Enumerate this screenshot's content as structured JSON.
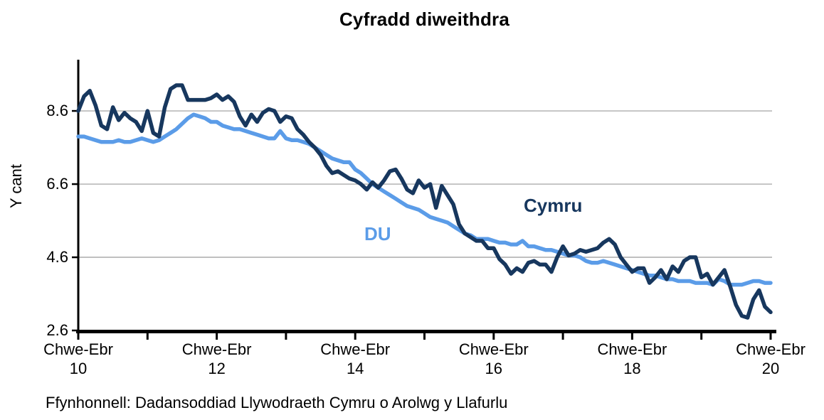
{
  "header": {
    "title": "Cyfradd diweithdra"
  },
  "footer": {
    "source": "Ffynhonnell: Dadansoddiad Llywodraeth Cymru o Arolwg y Llafurlu"
  },
  "colors": {
    "cymru_line": "#17375e",
    "du_line": "#5b9ce8",
    "gridline": "#9b9b9b",
    "axis": "#000000",
    "text": "#000000"
  },
  "chart_data": {
    "type": "line",
    "title": "Cyfradd diweithdra",
    "xlabel": "",
    "ylabel": "Y cant",
    "ylim": [
      2.6,
      10.0
    ],
    "grid": true,
    "gridline_values": [
      4.6,
      6.6,
      8.6
    ],
    "legend_position": "inline-labels",
    "y_axis": {
      "ticks": [
        {
          "value": 8.6,
          "label": "8.6"
        },
        {
          "value": 6.6,
          "label": "6.6"
        },
        {
          "value": 4.6,
          "label": "4.6"
        },
        {
          "value": 2.6,
          "label": "2.6"
        }
      ]
    },
    "x_axis": {
      "start_year": 10,
      "end_year": 20,
      "tick_years": [
        10,
        11,
        12,
        13,
        14,
        15,
        16,
        17,
        18,
        19,
        20
      ],
      "labels": [
        {
          "year": 10,
          "line1": "Chwe-Ebr",
          "line2": "10"
        },
        {
          "year": 12,
          "line1": "Chwe-Ebr",
          "line2": "12"
        },
        {
          "year": 14,
          "line1": "Chwe-Ebr",
          "line2": "14"
        },
        {
          "year": 16,
          "line1": "Chwe-Ebr",
          "line2": "16"
        },
        {
          "year": 18,
          "line1": "Chwe-Ebr",
          "line2": "18"
        },
        {
          "year": 20,
          "line1": "Chwe-Ebr",
          "line2": "20"
        }
      ]
    },
    "x_description": "Monthly rolling-quarter points from Chwe-Ebr 2010 (t=0) to Chwe-Ebr 2020 (t=120)",
    "series": [
      {
        "name": "DU",
        "color": "#5b9ce8",
        "values": [
          7.9,
          7.9,
          7.85,
          7.8,
          7.75,
          7.75,
          7.75,
          7.8,
          7.75,
          7.75,
          7.8,
          7.85,
          7.8,
          7.75,
          7.8,
          7.9,
          8.0,
          8.1,
          8.25,
          8.4,
          8.5,
          8.45,
          8.4,
          8.3,
          8.3,
          8.2,
          8.15,
          8.1,
          8.1,
          8.05,
          8.0,
          7.95,
          7.9,
          7.85,
          7.85,
          8.05,
          7.85,
          7.8,
          7.8,
          7.75,
          7.7,
          7.6,
          7.5,
          7.4,
          7.3,
          7.25,
          7.2,
          7.2,
          7.0,
          6.9,
          6.75,
          6.6,
          6.5,
          6.4,
          6.3,
          6.2,
          6.1,
          6.0,
          5.95,
          5.9,
          5.8,
          5.7,
          5.65,
          5.6,
          5.55,
          5.45,
          5.35,
          5.25,
          5.2,
          5.1,
          5.1,
          5.1,
          5.05,
          5.0,
          5.0,
          4.95,
          4.95,
          5.05,
          4.9,
          4.9,
          4.85,
          4.8,
          4.8,
          4.75,
          4.7,
          4.65,
          4.65,
          4.6,
          4.5,
          4.45,
          4.45,
          4.5,
          4.45,
          4.4,
          4.35,
          4.3,
          4.25,
          4.2,
          4.15,
          4.1,
          4.1,
          4.05,
          4.0,
          4.0,
          3.95,
          3.95,
          3.95,
          3.9,
          3.9,
          3.9,
          3.85,
          4.0,
          3.95,
          3.85,
          3.85,
          3.85,
          3.9,
          3.95,
          3.95,
          3.9,
          3.9
        ]
      },
      {
        "name": "Cymru",
        "color": "#17375e",
        "values": [
          8.6,
          9.0,
          9.15,
          8.75,
          8.2,
          8.1,
          8.7,
          8.35,
          8.55,
          8.4,
          8.3,
          8.05,
          8.6,
          8.0,
          7.9,
          8.7,
          9.2,
          9.3,
          9.3,
          8.9,
          8.9,
          8.9,
          8.9,
          8.95,
          9.05,
          8.9,
          9.0,
          8.85,
          8.45,
          8.2,
          8.5,
          8.3,
          8.55,
          8.65,
          8.6,
          8.3,
          8.45,
          8.4,
          8.1,
          7.95,
          7.75,
          7.6,
          7.4,
          7.1,
          6.9,
          6.95,
          6.85,
          6.75,
          6.7,
          6.6,
          6.45,
          6.65,
          6.5,
          6.7,
          6.95,
          7.0,
          6.75,
          6.45,
          6.35,
          6.7,
          6.5,
          6.6,
          5.95,
          6.55,
          6.3,
          6.05,
          5.5,
          5.25,
          5.15,
          5.05,
          5.05,
          4.85,
          4.85,
          4.55,
          4.4,
          4.15,
          4.3,
          4.2,
          4.45,
          4.5,
          4.4,
          4.4,
          4.2,
          4.6,
          4.9,
          4.65,
          4.7,
          4.8,
          4.75,
          4.8,
          4.85,
          5.0,
          5.1,
          4.95,
          4.6,
          4.4,
          4.2,
          4.3,
          4.3,
          3.9,
          4.05,
          4.25,
          4.0,
          4.35,
          4.2,
          4.5,
          4.6,
          4.6,
          4.05,
          4.15,
          3.85,
          4.05,
          4.25,
          3.8,
          3.3,
          3.0,
          2.95,
          3.45,
          3.7,
          3.25,
          3.1
        ]
      }
    ],
    "series_labels": [
      {
        "text": "DU",
        "color": "#5b9ce8"
      },
      {
        "text": "Cymru",
        "color": "#17375e"
      }
    ]
  }
}
